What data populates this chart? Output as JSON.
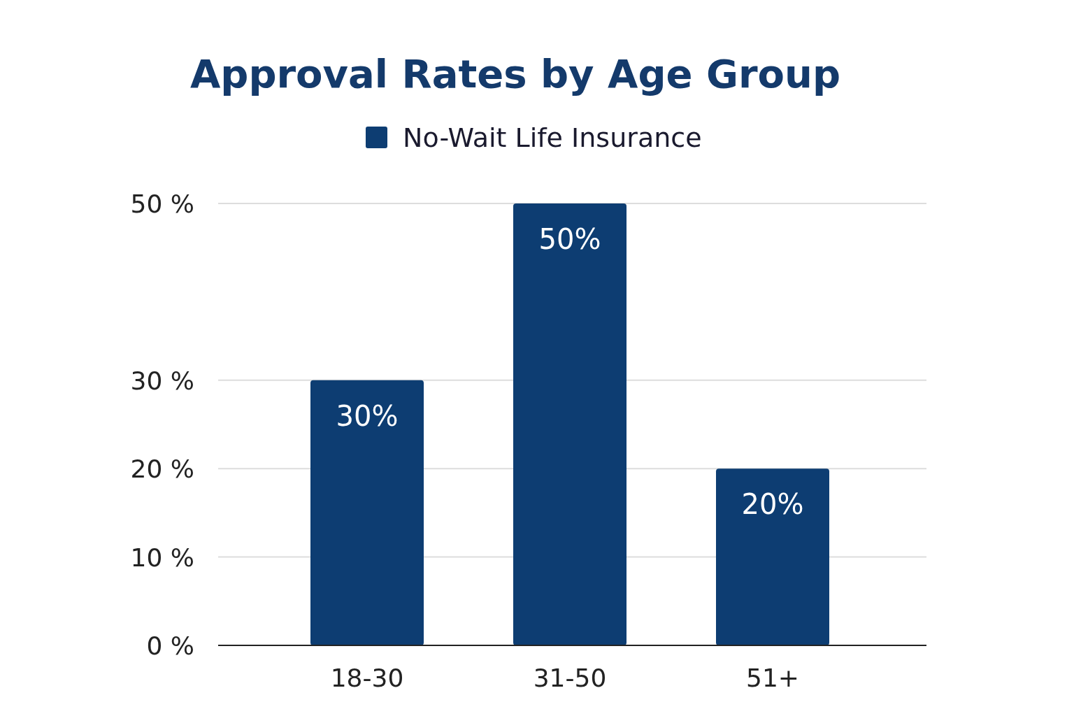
{
  "chart_data": {
    "type": "bar",
    "title": "Approval Rates by Age Group",
    "categories": [
      "18-30",
      "31-50",
      "51+"
    ],
    "series": [
      {
        "name": "No-Wait Life Insurance",
        "color": "#0d3d72",
        "values": [
          30,
          50,
          20
        ]
      }
    ],
    "value_labels": [
      "30%",
      "50%",
      "20%"
    ],
    "ylim": [
      0,
      50
    ],
    "yticks": [
      {
        "value": 0,
        "label": "0 %"
      },
      {
        "value": 10,
        "label": "10 %"
      },
      {
        "value": 20,
        "label": "20 %"
      },
      {
        "value": 30,
        "label": "30 %"
      },
      {
        "value": 50,
        "label": "50 %"
      }
    ],
    "grid": "y",
    "legend": "top"
  }
}
